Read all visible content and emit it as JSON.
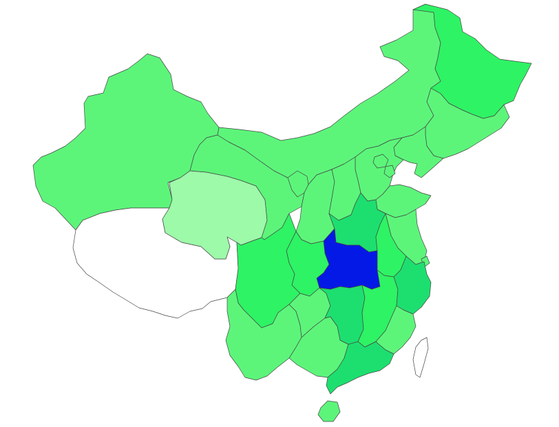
{
  "map": {
    "title": "",
    "legend": "",
    "levels": {
      "none": "#ffffff",
      "very_light": "#9dfaa9",
      "light": "#5cf57a",
      "medium": "#2ef364",
      "strong": "#1ddf6f",
      "highlight": "#0519e6"
    },
    "regions": [
      {
        "id": "xinjiang",
        "level": "light"
      },
      {
        "id": "xizang",
        "level": "none"
      },
      {
        "id": "qinghai",
        "level": "very_light"
      },
      {
        "id": "gansu",
        "level": "light"
      },
      {
        "id": "neimenggu",
        "level": "light"
      },
      {
        "id": "heilongjiang",
        "level": "medium"
      },
      {
        "id": "jilin",
        "level": "light"
      },
      {
        "id": "liaoning",
        "level": "light"
      },
      {
        "id": "ningxia",
        "level": "light"
      },
      {
        "id": "shaanxi",
        "level": "light"
      },
      {
        "id": "shanxi",
        "level": "light"
      },
      {
        "id": "hebei",
        "level": "light"
      },
      {
        "id": "beijing",
        "level": "light"
      },
      {
        "id": "tianjin",
        "level": "light"
      },
      {
        "id": "shandong",
        "level": "light"
      },
      {
        "id": "henan",
        "level": "strong"
      },
      {
        "id": "hubei",
        "level": "highlight"
      },
      {
        "id": "sichuan",
        "level": "medium"
      },
      {
        "id": "chongqing",
        "level": "medium"
      },
      {
        "id": "yunnan",
        "level": "light"
      },
      {
        "id": "guizhou",
        "level": "light"
      },
      {
        "id": "hunan",
        "level": "strong"
      },
      {
        "id": "jiangxi",
        "level": "medium"
      },
      {
        "id": "anhui",
        "level": "medium"
      },
      {
        "id": "jiangsu",
        "level": "light"
      },
      {
        "id": "shanghai",
        "level": "light"
      },
      {
        "id": "zhejiang",
        "level": "strong"
      },
      {
        "id": "fujian",
        "level": "light"
      },
      {
        "id": "guangdong",
        "level": "strong"
      },
      {
        "id": "guangxi",
        "level": "light"
      },
      {
        "id": "hainan",
        "level": "light"
      },
      {
        "id": "taiwan",
        "level": "none"
      }
    ]
  }
}
